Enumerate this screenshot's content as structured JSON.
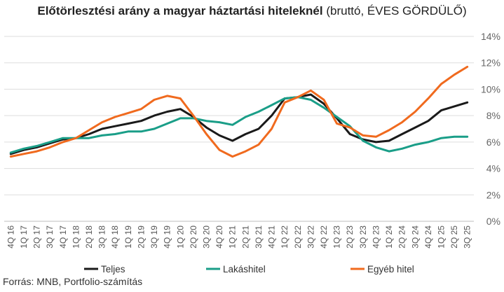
{
  "chart_data": {
    "type": "line",
    "title_main": "Előtörlesztési arány a magyar háztartási hiteleknél",
    "title_sub": "(bruttó, ÉVES GÖRDÜLŐ)",
    "source": "Forrás: MNB, Portfolio-számítás",
    "ylim": [
      0,
      14
    ],
    "yticks": [
      "0%",
      "2%",
      "4%",
      "6%",
      "8%",
      "10%",
      "12%",
      "14%"
    ],
    "categories": [
      "4Q 16",
      "1Q 17",
      "2Q 17",
      "3Q 17",
      "4Q 17",
      "1Q 18",
      "2Q 18",
      "3Q 18",
      "4Q 18",
      "1Q 19",
      "2Q 19",
      "3Q 19",
      "4Q 19",
      "1Q 20",
      "2Q 20",
      "3Q 20",
      "4Q 20",
      "1Q 21",
      "2Q 21",
      "3Q 21",
      "4Q 21",
      "1Q 22",
      "2Q 22",
      "3Q 22",
      "4Q 22",
      "1Q 23",
      "2Q 23",
      "3Q 23",
      "4Q 23",
      "1Q 24",
      "2Q 24",
      "3Q 24",
      "4Q 24",
      "1Q 25",
      "2Q 25",
      "3Q 25"
    ],
    "series": [
      {
        "name": "Teljes",
        "color": "#1a1a1a",
        "values": [
          5.1,
          5.4,
          5.6,
          5.9,
          6.2,
          6.3,
          6.6,
          7.0,
          7.2,
          7.4,
          7.6,
          8.0,
          8.3,
          8.5,
          7.9,
          7.1,
          6.5,
          6.1,
          6.6,
          7.0,
          8.0,
          9.3,
          9.4,
          9.6,
          8.9,
          7.8,
          6.6,
          6.2,
          6.0,
          6.1,
          6.6,
          7.1,
          7.6,
          8.4,
          8.7,
          9.0
        ]
      },
      {
        "name": "Lakáshitel",
        "color": "#1a9e88",
        "values": [
          5.2,
          5.5,
          5.7,
          6.0,
          6.3,
          6.3,
          6.3,
          6.5,
          6.6,
          6.8,
          6.8,
          7.0,
          7.4,
          7.8,
          7.8,
          7.6,
          7.5,
          7.3,
          7.9,
          8.3,
          8.8,
          9.3,
          9.4,
          9.2,
          8.6,
          7.9,
          7.2,
          6.1,
          5.6,
          5.3,
          5.5,
          5.8,
          6.0,
          6.3,
          6.4,
          6.4
        ]
      },
      {
        "name": "Egyéb hitel",
        "color": "#f06a1e",
        "values": [
          4.9,
          5.1,
          5.3,
          5.6,
          6.0,
          6.3,
          6.9,
          7.5,
          7.9,
          8.2,
          8.5,
          9.2,
          9.5,
          9.3,
          8.0,
          6.6,
          5.4,
          4.9,
          5.3,
          5.8,
          7.0,
          9.0,
          9.4,
          9.9,
          9.2,
          7.4,
          7.1,
          6.5,
          6.4,
          6.9,
          7.5,
          8.3,
          9.3,
          10.4,
          11.1,
          11.7
        ]
      }
    ],
    "legend_position": "bottom",
    "grid": true
  }
}
